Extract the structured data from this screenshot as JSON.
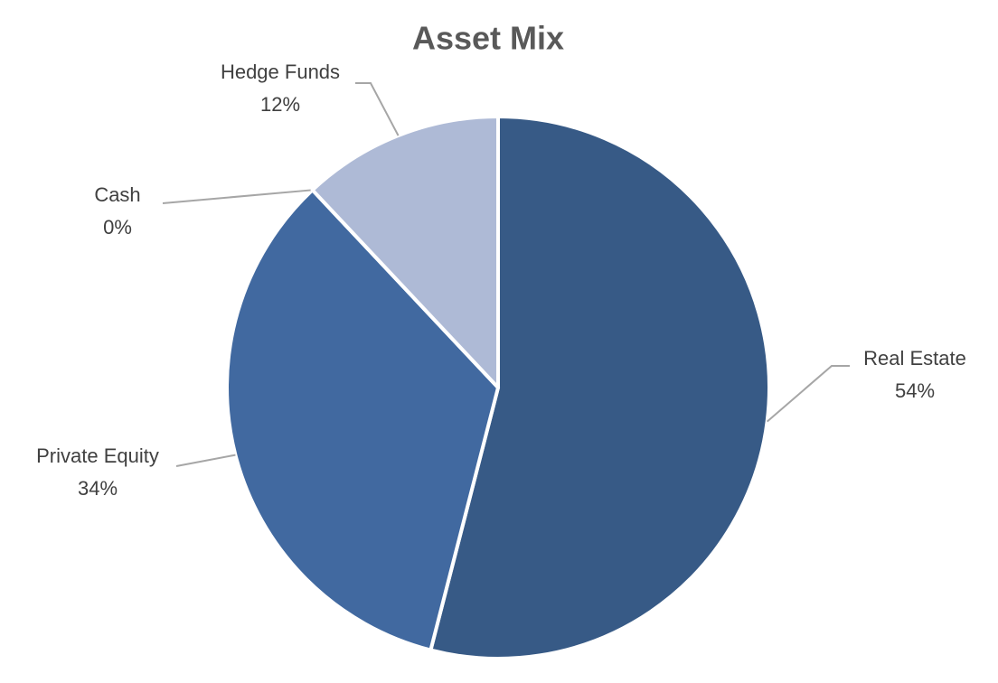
{
  "chart_data": {
    "type": "pie",
    "title": "Asset Mix",
    "categories": [
      "Real Estate",
      "Private Equity",
      "Cash",
      "Hedge Funds"
    ],
    "values": [
      54,
      34,
      0,
      12
    ],
    "value_labels": [
      "54%",
      "34%",
      "0%",
      "12%"
    ],
    "colors": [
      "#375a86",
      "#4169a0",
      "#6f8fc0",
      "#aebad6"
    ]
  }
}
